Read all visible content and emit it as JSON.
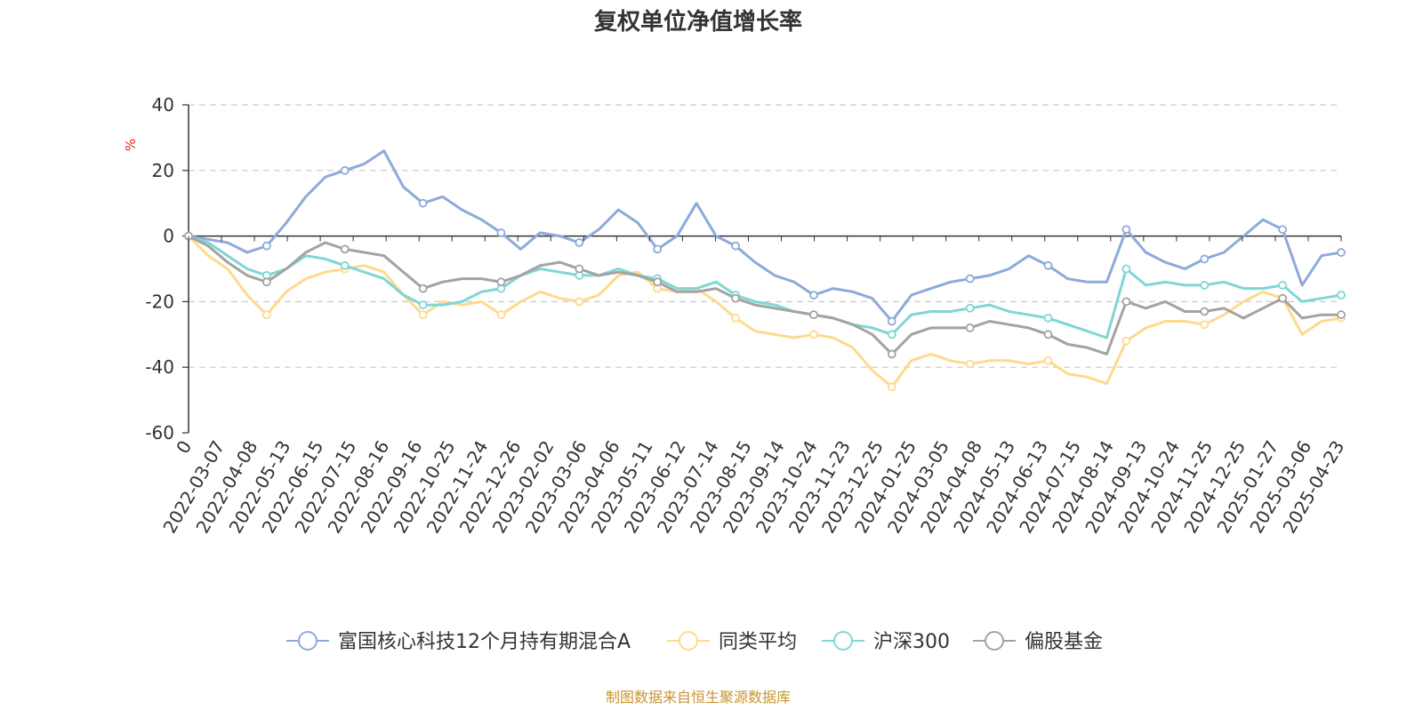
{
  "chart_data": {
    "type": "line",
    "title": "复权单位净值增长率",
    "ylabel": "%",
    "ylim": [
      -60,
      40
    ],
    "yticks": [
      40,
      20,
      0,
      -20,
      -40,
      -60
    ],
    "grid": true,
    "legend_position": "bottom",
    "x_tick_labels": [
      "0",
      "2022-03-07",
      "2022-04-08",
      "2022-05-13",
      "2022-06-15",
      "2022-07-15",
      "2022-08-16",
      "2022-09-16",
      "2022-10-25",
      "2022-11-24",
      "2022-12-26",
      "2023-02-02",
      "2023-03-06",
      "2023-04-06",
      "2023-05-11",
      "2023-06-12",
      "2023-07-14",
      "2023-08-15",
      "2023-09-14",
      "2023-10-24",
      "2023-11-23",
      "2023-12-25",
      "2024-01-25",
      "2024-03-05",
      "2024-04-08",
      "2024-05-13",
      "2024-06-13",
      "2024-07-15",
      "2024-08-14",
      "2024-09-13",
      "2024-10-24",
      "2024-11-25",
      "2024-12-25",
      "2025-01-27",
      "2025-03-06",
      "2025-04-23"
    ],
    "series": [
      {
        "name": "富国核心科技12个月持有期混合A",
        "color": "#8eaadb",
        "values": [
          0,
          -1,
          -2,
          -5,
          -3,
          4,
          12,
          18,
          20,
          22,
          26,
          15,
          10,
          12,
          8,
          5,
          1,
          -4,
          1,
          0,
          -2,
          2,
          8,
          4,
          -4,
          0,
          10,
          0,
          -3,
          -8,
          -12,
          -14,
          -18,
          -16,
          -17,
          -19,
          -26,
          -18,
          -16,
          -14,
          -13,
          -12,
          -10,
          -6,
          -9,
          -13,
          -14,
          -14,
          2,
          -5,
          -8,
          -10,
          -7,
          -5,
          0,
          5,
          2,
          -15,
          -6,
          -5
        ]
      },
      {
        "name": "同类平均",
        "color": "#ffd98e",
        "values": [
          0,
          -6,
          -10,
          -18,
          -24,
          -17,
          -13,
          -11,
          -10,
          -9,
          -11,
          -18,
          -24,
          -20,
          -21,
          -20,
          -24,
          -20,
          -17,
          -19,
          -20,
          -18,
          -12,
          -11,
          -16,
          -17,
          -16,
          -20,
          -25,
          -29,
          -30,
          -31,
          -30,
          -31,
          -34,
          -41,
          -46,
          -38,
          -36,
          -38,
          -39,
          -38,
          -38,
          -39,
          -38,
          -42,
          -43,
          -45,
          -32,
          -28,
          -26,
          -26,
          -27,
          -24,
          -20,
          -17,
          -19,
          -30,
          -26,
          -25
        ]
      },
      {
        "name": "沪深300",
        "color": "#7fd6d6",
        "values": [
          0,
          -2,
          -6,
          -10,
          -12,
          -10,
          -6,
          -7,
          -9,
          -11,
          -13,
          -18,
          -21,
          -21,
          -20,
          -17,
          -16,
          -12,
          -10,
          -11,
          -12,
          -12,
          -10,
          -12,
          -13,
          -16,
          -16,
          -14,
          -18,
          -20,
          -21,
          -23,
          -24,
          -25,
          -27,
          -28,
          -30,
          -24,
          -23,
          -23,
          -22,
          -21,
          -23,
          -24,
          -25,
          -27,
          -29,
          -31,
          -10,
          -15,
          -14,
          -15,
          -15,
          -14,
          -16,
          -16,
          -15,
          -20,
          -19,
          -18
        ]
      },
      {
        "name": "偏股基金",
        "color": "#a3a3a3",
        "values": [
          0,
          -3,
          -8,
          -12,
          -14,
          -10,
          -5,
          -2,
          -4,
          -5,
          -6,
          -11,
          -16,
          -14,
          -13,
          -13,
          -14,
          -12,
          -9,
          -8,
          -10,
          -12,
          -11,
          -12,
          -14,
          -17,
          -17,
          -16,
          -19,
          -21,
          -22,
          -23,
          -24,
          -25,
          -27,
          -30,
          -36,
          -30,
          -28,
          -28,
          -28,
          -26,
          -27,
          -28,
          -30,
          -33,
          -34,
          -36,
          -20,
          -22,
          -20,
          -23,
          -23,
          -22,
          -25,
          -22,
          -19,
          -25,
          -24,
          -24
        ]
      }
    ]
  },
  "source": "制图数据来自恒生聚源数据库"
}
